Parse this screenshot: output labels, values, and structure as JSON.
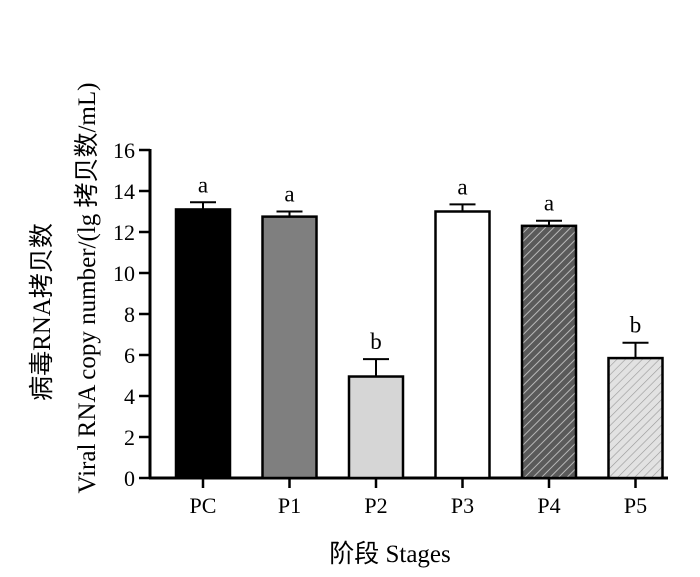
{
  "chart_data": {
    "type": "bar",
    "xlabel": "阶段 Stages",
    "ylabel_line1": "病毒RNA拷贝数",
    "ylabel_line2": "Viral RNA copy number/(lg 拷贝数/mL)",
    "ylim": [
      0,
      16
    ],
    "yticks": [
      "0",
      "2",
      "4",
      "6",
      "8",
      "10",
      "12",
      "14",
      "16"
    ],
    "categories": [
      "PC",
      "P1",
      "P2",
      "P3",
      "P4",
      "P5"
    ],
    "values": [
      13.1,
      12.75,
      4.95,
      13.0,
      12.3,
      5.85
    ],
    "errors": [
      0.35,
      0.25,
      0.85,
      0.35,
      0.25,
      0.75
    ],
    "significance": [
      "a",
      "a",
      "b",
      "a",
      "a",
      "b"
    ],
    "fills": [
      "#000000",
      "#7f7f7f",
      "#d6d6d6",
      "#ffffff",
      "hatch-dark",
      "hatch-light"
    ],
    "grid": false
  }
}
